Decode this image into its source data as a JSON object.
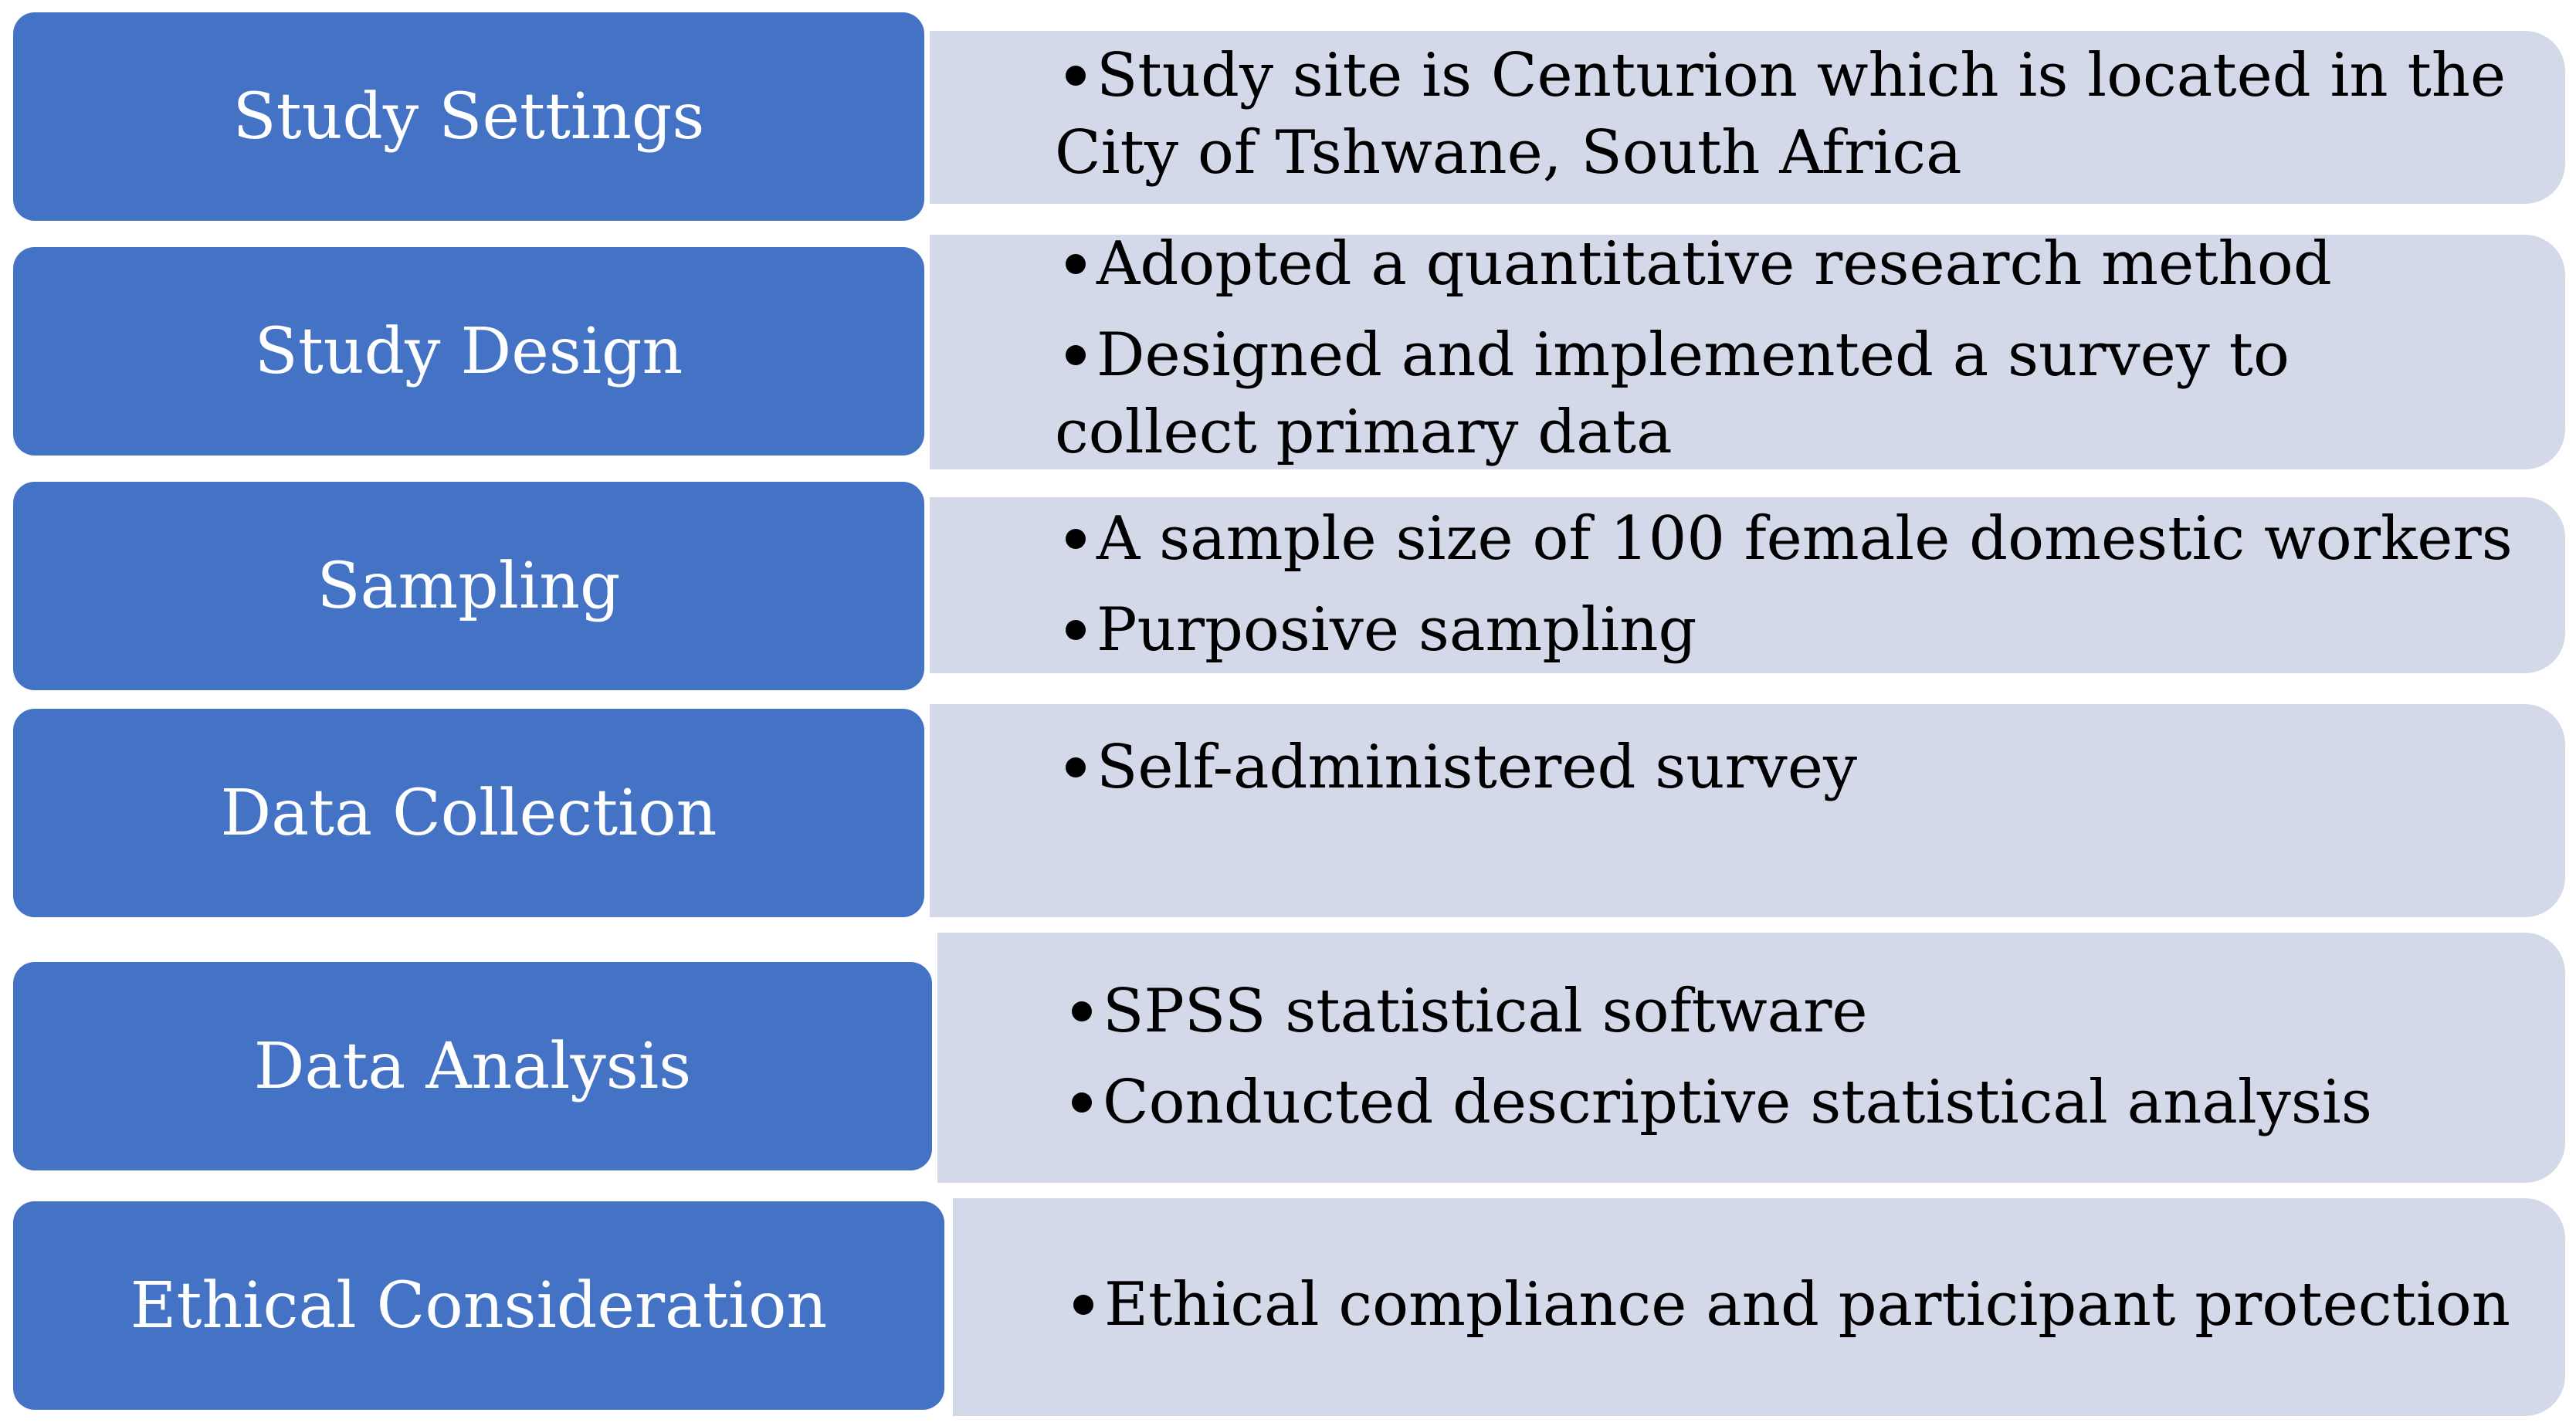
{
  "rows": [
    {
      "label": "Study Settings",
      "bullets": [
        {
          "text": "Study site is Centurion which is located in the",
          "cont": "City of Tshwane, South Africa"
        }
      ]
    },
    {
      "label": "Study Design",
      "bullets": [
        {
          "text": "Adopted a quantitative research method",
          "cont": ""
        },
        {
          "text": "Designed and implemented a survey to",
          "cont": "collect primary data"
        }
      ]
    },
    {
      "label": "Sampling",
      "bullets": [
        {
          "text": "A sample size of 100 female domestic workers",
          "cont": ""
        },
        {
          "text": "Purposive sampling",
          "cont": ""
        }
      ]
    },
    {
      "label": "Data Collection",
      "bullets": [
        {
          "text": "Self-administered survey",
          "cont": ""
        }
      ]
    },
    {
      "label": "Data Analysis",
      "bullets": [
        {
          "text": "SPSS statistical software",
          "cont": ""
        },
        {
          "text": "Conducted descriptive statistical analysis",
          "cont": ""
        }
      ]
    },
    {
      "label": "Ethical Consideration",
      "bullets": [
        {
          "text": "Ethical compliance and participant protection",
          "cont": ""
        }
      ]
    }
  ],
  "colors": {
    "label_fill": "#4472c4",
    "detail_fill": "#d4d9ea"
  }
}
